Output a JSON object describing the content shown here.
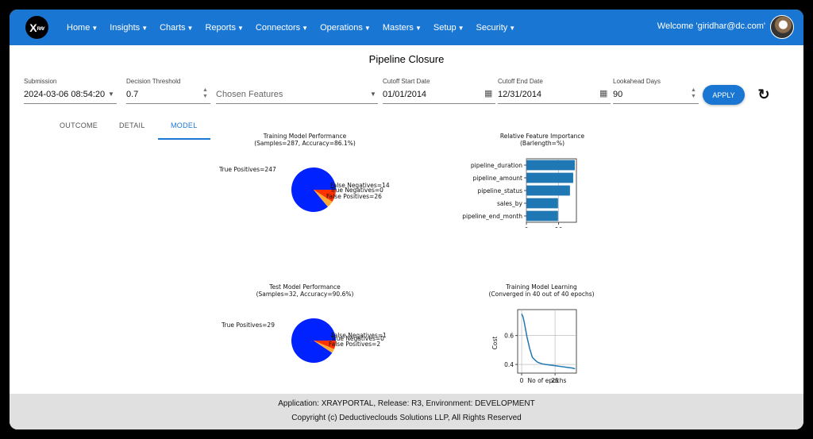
{
  "nav": {
    "logo_main": "X",
    "logo_small": "RAY",
    "items": [
      "Home",
      "Insights",
      "Charts",
      "Reports",
      "Connectors",
      "Operations",
      "Masters",
      "Setup",
      "Security"
    ],
    "welcome": "Welcome 'giridhar@dc.com'"
  },
  "page": {
    "title": "Pipeline Closure"
  },
  "filters": {
    "submission_label": "Submission",
    "submission_value": "2024-03-06 08:54:20",
    "threshold_label": "Decision Threshold",
    "threshold_value": "0.7",
    "features_placeholder": "Chosen Features",
    "cutoff_start_label": "Cutoff Start Date",
    "cutoff_start_value": "01/01/2014",
    "cutoff_end_label": "Cutoff End Date",
    "cutoff_end_value": "12/31/2014",
    "lookahead_label": "Lookahead Days",
    "lookahead_value": "90",
    "apply_label": "APPLY"
  },
  "tabs": [
    "OUTCOME",
    "DETAIL",
    "MODEL"
  ],
  "active_tab": "MODEL",
  "colors": {
    "primary": "#1976d2",
    "pie_tp": "#0022ff",
    "pie_fn": "#ffaa33",
    "pie_tn": "#ff2a1a",
    "pie_fp": "#ff3300",
    "bar": "#1f77b4"
  },
  "chart_data": [
    {
      "type": "pie",
      "title": "Training Model Performance",
      "subtitle": "(Samples=287, Accuracy=86.1%)",
      "labels": [
        "True Positives=247",
        "False Negatives=14",
        "True Negatives=0",
        "False Positives=26"
      ],
      "values": [
        247,
        14,
        0,
        26
      ]
    },
    {
      "type": "bar",
      "orientation": "horizontal",
      "title": "Relative Feature Importance",
      "subtitle": "(Barlength=%)",
      "categories": [
        "pipeline_duration",
        "pipeline_amount",
        "pipeline_status",
        "sales_by",
        "pipeline_end_month"
      ],
      "values": [
        15,
        14.5,
        13.5,
        9.8,
        9.8
      ],
      "xlim": [
        0,
        15.5
      ],
      "xticks": [
        0,
        10
      ],
      "grid": true
    },
    {
      "type": "pie",
      "title": "Test Model Performance",
      "subtitle": "(Samples=32, Accuracy=90.6%)",
      "labels": [
        "True Positives=29",
        "False Negatives=1",
        "True Negatives=0",
        "False Positives=2"
      ],
      "values": [
        29,
        1,
        0,
        2
      ]
    },
    {
      "type": "line",
      "title": "Training Model Learning",
      "subtitle": "(Converged in 40 out of 40 epochs)",
      "xlabel": "No of epochs",
      "ylabel": "Cost",
      "x": [
        0,
        1,
        2,
        3,
        4,
        5,
        6,
        7,
        8,
        10,
        12,
        15,
        18,
        22,
        26,
        30,
        34,
        38,
        40
      ],
      "y": [
        0.75,
        0.73,
        0.69,
        0.64,
        0.59,
        0.55,
        0.51,
        0.48,
        0.45,
        0.43,
        0.415,
        0.405,
        0.4,
        0.395,
        0.39,
        0.385,
        0.38,
        0.375,
        0.37
      ],
      "xlim": [
        -3,
        41
      ],
      "ylim": [
        0.34,
        0.78
      ],
      "xticks": [
        0,
        25
      ],
      "yticks": [
        0.4,
        0.6
      ],
      "grid": true
    }
  ],
  "footer": {
    "line1": "Application: XRAYPORTAL, Release: R3, Environment: DEVELOPMENT",
    "line2": "Copyright (c) Deductiveclouds Solutions LLP, All Rights Reserved"
  }
}
